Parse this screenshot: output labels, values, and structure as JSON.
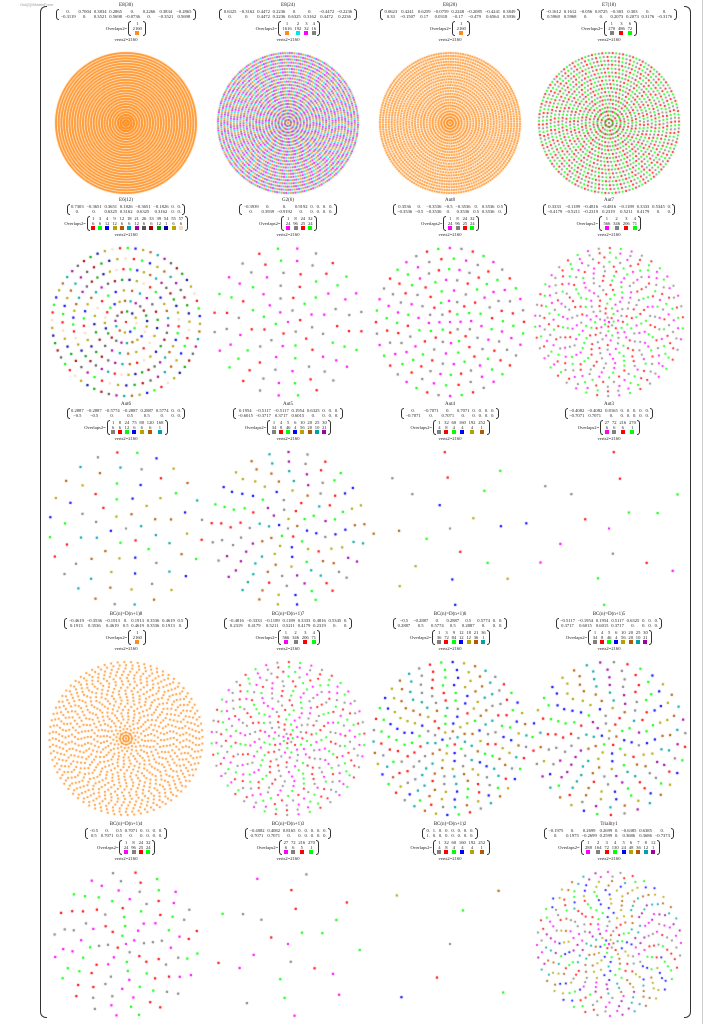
{
  "output_label": "Out[2]//MatrixForm",
  "overlaps_label": "Overlaps2=",
  "verts_label": "verts2=2160",
  "colors": {
    "orange": "#ff8c1a",
    "cyan": "#00e6e6",
    "magenta": "#ff00ff",
    "gray": "#808080",
    "red": "#ff0000",
    "green": "#00ff00",
    "blue": "#0000ff",
    "olive": "#b3a400",
    "brown": "#b35900",
    "teal": "#00a3a3",
    "purple": "#a000a0",
    "darkgray": "#555555",
    "darkred": "#a00000",
    "darkgreen": "#00a000",
    "darkblue": "#0000a0",
    "bisque": "#f5dcc0"
  },
  "cells": [
    {
      "title": "E8(30)",
      "m": [
        [
          "0.",
          "0.7004",
          "0.3834",
          "0.2865",
          "0.",
          "0.2266",
          "0.3834",
          "−0.2865"
        ],
        [
          "−0.3119",
          "0.",
          "0.3521",
          "0.5698",
          "−0.0736",
          "0.",
          "−0.3521",
          "0.5698"
        ]
      ],
      "ov": [
        [
          "1"
        ],
        [
          "2160"
        ]
      ],
      "c": [
        "orange"
      ]
    },
    {
      "title": "E8(24)",
      "m": [
        [
          "0.6325",
          "−0.3162",
          "0.4472",
          "0.2236",
          "0.",
          "0.",
          "−0.4472",
          "−0.2236"
        ],
        [
          "0.",
          "0.",
          "0.4472",
          "0.2236",
          "0.6325",
          "0.3162",
          "0.4472",
          "0.2236"
        ]
      ],
      "ov": [
        [
          "1",
          "2",
          "3",
          "4"
        ],
        [
          "1616",
          "192",
          "32",
          "16"
        ]
      ],
      "c": [
        "orange",
        "cyan",
        "magenta",
        "gray"
      ]
    },
    {
      "title": "E8(20)",
      "m": [
        [
          "0.0623",
          "0.4241",
          "0.6259",
          "−0.0759",
          "0.2248",
          "−0.2085",
          "−0.4241",
          "0.3849"
        ],
        [
          "0.33",
          "−0.1507",
          "0.17",
          "0.0318",
          "−0.17",
          "−0.479",
          "0.6564",
          "0.3936"
        ]
      ],
      "ov": [
        [
          "1"
        ],
        [
          "2160"
        ]
      ],
      "c": [
        "orange"
      ]
    },
    {
      "title": "E7(18)",
      "m": [
        [
          "−0.1612",
          "0.1612",
          "−0.056",
          "0.8725",
          "−0.303",
          "0.303",
          "0.",
          "0."
        ],
        [
          "0.5968",
          "0.5968",
          "0.",
          "0.",
          "0.2073",
          "0.2073",
          "0.3176",
          "−0.3176"
        ]
      ],
      "ov": [
        [
          "1",
          "3",
          "6"
        ],
        [
          "270",
          "486",
          "72"
        ]
      ],
      "c": [
        "gray",
        "red",
        "green"
      ]
    },
    {
      "title": "E6(12)",
      "m": [
        [
          "0.7303",
          "−0.3651",
          "0.3651",
          "0.1826",
          "−0.3651",
          "−0.1826",
          "0.",
          "0."
        ],
        [
          "0.",
          "0.",
          "0.6325",
          "0.3162",
          "0.6325",
          "0.3162",
          "0.",
          "0."
        ]
      ],
      "ov": [
        [
          "1",
          "3",
          "4",
          "9",
          "12",
          "18",
          "21",
          "26",
          "33",
          "39",
          "54",
          "55",
          "57"
        ],
        [
          "6",
          "6",
          "12",
          "12",
          "6",
          "6",
          "12",
          "6",
          "6",
          "12",
          "1",
          "6",
          "6"
        ]
      ],
      "c": [
        "red",
        "green",
        "blue",
        "olive",
        "brown",
        "teal",
        "purple",
        "darkgray",
        "darkred",
        "darkgreen",
        "darkblue",
        "olive",
        "bisque"
      ]
    },
    {
      "title": "G2(6)",
      "m": [
        [
          "−0.3939",
          "0.",
          "0.",
          "0.9192",
          "0.",
          "0.",
          "0.",
          "0."
        ],
        [
          "0.",
          "0.3939",
          "−0.9192",
          "0.",
          "0.",
          "0.",
          "0.",
          "0."
        ]
      ],
      "ov": [
        [
          "1",
          "8",
          "24",
          "32"
        ],
        [
          "24",
          "96",
          "25",
          "24"
        ]
      ],
      "c": [
        "magenta",
        "gray",
        "red",
        "green"
      ]
    },
    {
      "title": "Aut8",
      "m": [
        [
          "0.3536",
          "0.",
          "−0.3536",
          "−0.5",
          "−0.3536",
          "0.",
          "0.3536",
          "0.5"
        ],
        [
          "−0.3536",
          "−0.5",
          "−0.3536",
          "0.",
          "0.3536",
          "0.5",
          "0.3536",
          "0."
        ]
      ],
      "ov": [
        [
          "1",
          "8",
          "24",
          "32"
        ],
        [
          "24",
          "96",
          "25",
          "24"
        ]
      ],
      "c": [
        "magenta",
        "gray",
        "red",
        "green"
      ]
    },
    {
      "title": "Aut7",
      "m": [
        [
          "0.3333",
          "−0.1189",
          "−0.4816",
          "−0.4816",
          "−0.1189",
          "0.3333",
          "0.5345",
          "0."
        ],
        [
          "−0.4179",
          "−0.5211",
          "−0.2319",
          "0.2319",
          "0.5211",
          "0.4179",
          "0.",
          "0."
        ]
      ],
      "ov": [
        [
          "1",
          "2",
          "3",
          "4"
        ],
        [
          "566",
          "346",
          "206",
          "71"
        ]
      ],
      "c": [
        "magenta",
        "gray",
        "red",
        "green"
      ]
    },
    {
      "title": "Aut6",
      "m": [
        [
          "0.2887",
          "−0.2887",
          "−0.5774",
          "−0.2887",
          "0.2887",
          "0.5774",
          "0.",
          "0."
        ],
        [
          "−0.5",
          "−0.5",
          "0.",
          "0.5",
          "0.5",
          "0.",
          "0.",
          "0."
        ]
      ],
      "ov": [
        [
          "1",
          "8",
          "24",
          "75",
          "80",
          "120",
          "168"
        ],
        [
          "6",
          "6",
          "12",
          "6",
          "6",
          "6",
          "1"
        ]
      ],
      "c": [
        "gray",
        "red",
        "green",
        "blue",
        "olive",
        "brown",
        "teal"
      ]
    },
    {
      "title": "Aut5",
      "m": [
        [
          "0.1954",
          "−0.5117",
          "−0.5117",
          "0.1954",
          "0.6325",
          "0.",
          "0.",
          "0."
        ],
        [
          "−0.6015",
          "−0.3717",
          "0.3717",
          "0.6015",
          "0.",
          "0.",
          "0.",
          "0."
        ]
      ],
      "ov": [
        [
          "1",
          "4",
          "5",
          "6",
          "10",
          "20",
          "25",
          "30"
        ],
        [
          "34",
          "8",
          "46",
          "4",
          "56",
          "20",
          "10",
          "21"
        ]
      ],
      "c": [
        "gray",
        "red",
        "green",
        "blue",
        "olive",
        "brown",
        "teal",
        "purple"
      ]
    },
    {
      "title": "Aut4",
      "m": [
        [
          "0.",
          "−0.7071",
          "0.",
          "0.7071",
          "0.",
          "0.",
          "0.",
          "0."
        ],
        [
          "−0.7071",
          "0.",
          "0.7071",
          "0.",
          "0.",
          "0.",
          "0.",
          "0."
        ]
      ],
      "ov": [
        [
          "1",
          "32",
          "60",
          "160",
          "192",
          "252"
        ],
        [
          "4",
          "8",
          "4",
          "4",
          "4",
          "1"
        ]
      ],
      "c": [
        "gray",
        "red",
        "green",
        "blue",
        "olive",
        "brown"
      ]
    },
    {
      "title": "Aut3",
      "m": [
        [
          "−0.4082",
          "−0.4082",
          "0.8165",
          "0.",
          "0.",
          "0.",
          "0.",
          "0."
        ],
        [
          "−0.7071",
          "0.7071",
          "0.",
          "0.",
          "0.",
          "0.",
          "0.",
          "0."
        ]
      ],
      "ov": [
        [
          "27",
          "72",
          "216",
          "270"
        ],
        [
          "6",
          "6",
          "6",
          "1"
        ]
      ],
      "c": [
        "magenta",
        "gray",
        "red",
        "green"
      ]
    },
    {
      "title": "BC(n)=D(n+1)8",
      "m": [
        [
          "−0.4619",
          "−0.3536",
          "−0.1913",
          "0.",
          "0.1913",
          "0.3536",
          "0.4619",
          "0.5"
        ],
        [
          "0.1913",
          "0.3536",
          "0.4619",
          "0.5",
          "0.4619",
          "0.3536",
          "0.1913",
          "0."
        ]
      ],
      "ov": [
        [
          "1"
        ],
        [
          "2160"
        ]
      ],
      "c": [
        "orange"
      ]
    },
    {
      "title": "BC(n)=D(n+1)7",
      "m": [
        [
          "−0.4816",
          "−0.3333",
          "−0.1189",
          "0.1189",
          "0.3333",
          "0.4816",
          "0.5345",
          "0."
        ],
        [
          "0.2319",
          "0.4179",
          "0.5211",
          "0.5211",
          "0.4179",
          "0.2319",
          "0.",
          "0."
        ]
      ],
      "ov": [
        [
          "1",
          "2",
          "3",
          "4"
        ],
        [
          "566",
          "346",
          "206",
          "71"
        ]
      ],
      "c": [
        "magenta",
        "gray",
        "red",
        "green"
      ]
    },
    {
      "title": "BC(n)=D(n+1)6",
      "m": [
        [
          "−0.5",
          "−0.2887",
          "0.",
          "0.2887",
          "0.5",
          "0.5774",
          "0.",
          "0."
        ],
        [
          "0.2887",
          "0.5",
          "0.5774",
          "0.5",
          "0.2887",
          "0.",
          "0.",
          "0."
        ]
      ],
      "ov": [
        [
          "1",
          "3",
          "9",
          "12",
          "18",
          "21",
          "36"
        ],
        [
          "36",
          "72",
          "84",
          "12",
          "12",
          "36",
          "1"
        ]
      ],
      "c": [
        "gray",
        "red",
        "green",
        "blue",
        "olive",
        "brown",
        "teal"
      ]
    },
    {
      "title": "BC(n)=D(n+1)5",
      "m": [
        [
          "−0.5117",
          "−0.1954",
          "0.1954",
          "0.5117",
          "0.6325",
          "0.",
          "0.",
          "0."
        ],
        [
          "0.3717",
          "0.6015",
          "0.6015",
          "0.3717",
          "0.",
          "0.",
          "0.",
          "0."
        ]
      ],
      "ov": [
        [
          "1",
          "4",
          "5",
          "6",
          "10",
          "20",
          "25",
          "30"
        ],
        [
          "34",
          "8",
          "46",
          "4",
          "56",
          "20",
          "10",
          "21"
        ]
      ],
      "c": [
        "gray",
        "red",
        "green",
        "blue",
        "olive",
        "brown",
        "teal",
        "purple"
      ]
    },
    {
      "title": "BC(n)=D(n+1)4",
      "m": [
        [
          "−0.5",
          "0.",
          "0.5",
          "0.7071",
          "0.",
          "0.",
          "0.",
          "0."
        ],
        [
          "0.5",
          "0.7071",
          "0.5",
          "0.",
          "0.",
          "0.",
          "0.",
          "0."
        ]
      ],
      "ov": [
        [
          "1",
          "8",
          "24",
          "32"
        ],
        [
          "24",
          "96",
          "25",
          "24"
        ]
      ],
      "c": [
        "magenta",
        "gray",
        "red",
        "green"
      ]
    },
    {
      "title": "BC(n)=D(n+1)3",
      "m": [
        [
          "−0.4082",
          "0.4082",
          "0.8165",
          "0.",
          "0.",
          "0.",
          "0.",
          "0."
        ],
        [
          "0.7071",
          "0.7071",
          "0.",
          "0.",
          "0.",
          "0.",
          "0.",
          "0."
        ]
      ],
      "ov": [
        [
          "27",
          "72",
          "216",
          "270"
        ],
        [
          "6",
          "6",
          "5",
          "1"
        ]
      ],
      "c": [
        "magenta",
        "gray",
        "red",
        "green"
      ]
    },
    {
      "title": "BC(n)=D(n+1)2",
      "m": [
        [
          "0.",
          "1.",
          "0.",
          "0.",
          "0.",
          "0.",
          "0.",
          "0."
        ],
        [
          "1.",
          "0.",
          "0.",
          "0.",
          "0.",
          "0.",
          "0.",
          "0."
        ]
      ],
      "ov": [
        [
          "1",
          "32",
          "60",
          "160",
          "192",
          "252"
        ],
        [
          "4",
          "8",
          "4",
          "4",
          "4",
          "1"
        ]
      ],
      "c": [
        "gray",
        "red",
        "green",
        "blue",
        "olive",
        "brown"
      ]
    },
    {
      "title": "Triality1",
      "m": [
        [
          "−0.1975",
          "0.",
          "0.2699",
          "0.2699",
          "0.",
          "−0.6385",
          "0.6385",
          "0."
        ],
        [
          "0.",
          "0.1975",
          "−0.2699",
          "0.2599",
          "0.",
          "0.3686",
          "0.3686",
          "−0.7373"
        ]
      ],
      "ov": [
        [
          "1",
          "2",
          "3",
          "4",
          "5",
          "6",
          "7",
          "8",
          "12"
        ],
        [
          "288",
          "164",
          "72",
          "130",
          "24",
          "48",
          "36",
          "12",
          "1"
        ]
      ],
      "c": [
        "magenta",
        "gray",
        "red",
        "green",
        "blue",
        "olive",
        "brown",
        "teal",
        "purple"
      ]
    }
  ]
}
